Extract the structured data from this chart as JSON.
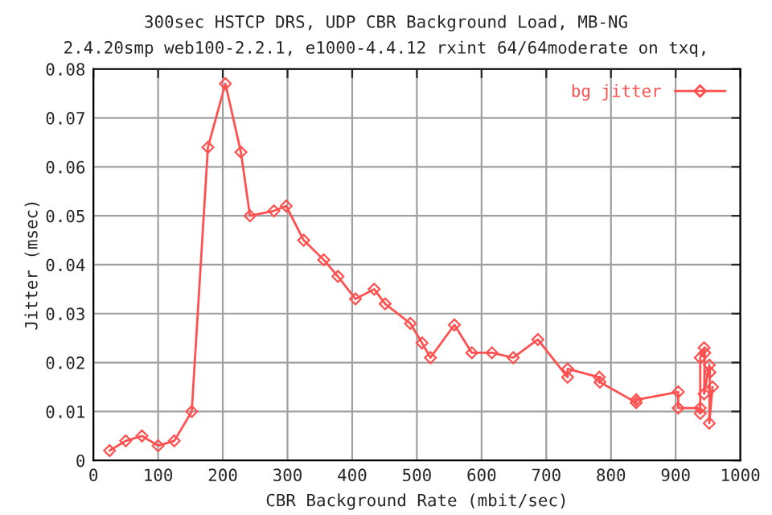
{
  "chart_data": {
    "type": "line",
    "title": "300sec HSTCP DRS, UDP CBR Background Load, MB-NG",
    "subtitle": "2.4.20smp web100-2.2.1, e1000-4.4.12 rxint 64/64moderate on txq,",
    "xlabel": "CBR Background Rate (mbit/sec)",
    "ylabel": "Jitter (msec)",
    "xlim": [
      0,
      1000
    ],
    "xticks": [
      0,
      100,
      200,
      300,
      400,
      500,
      600,
      700,
      800,
      900,
      1000
    ],
    "ylim": [
      0,
      0.08
    ],
    "yticks": [
      0,
      0.01,
      0.02,
      0.03,
      0.04,
      0.05,
      0.06,
      0.07,
      0.08
    ],
    "grid": true,
    "legend": "top right",
    "marker": "diamond",
    "line_style": "solid",
    "series": [
      {
        "name": "bg jitter",
        "color": "#ff5050",
        "x": [
          25,
          50,
          75,
          100,
          125,
          152,
          177,
          204,
          228,
          242,
          279,
          298,
          325,
          356,
          378,
          405,
          434,
          451,
          490,
          508,
          521,
          558,
          585,
          616,
          649,
          687,
          733,
          733,
          782,
          783,
          839,
          839,
          904,
          904,
          938,
          938,
          938,
          944,
          945,
          944,
          952,
          953,
          952,
          957
        ],
        "values": [
          0.002,
          0.004,
          0.005,
          0.003,
          0.004,
          0.01,
          0.064,
          0.077,
          0.063,
          0.05,
          0.051,
          0.052,
          0.045,
          0.041,
          0.0376,
          0.033,
          0.035,
          0.032,
          0.028,
          0.024,
          0.021,
          0.0277,
          0.022,
          0.022,
          0.021,
          0.0247,
          0.017,
          0.0187,
          0.017,
          0.016,
          0.0118,
          0.0124,
          0.014,
          0.0107,
          0.0107,
          0.0096,
          0.021,
          0.023,
          0.022,
          0.0136,
          0.0195,
          0.018,
          0.0076,
          0.015
        ]
      }
    ]
  }
}
